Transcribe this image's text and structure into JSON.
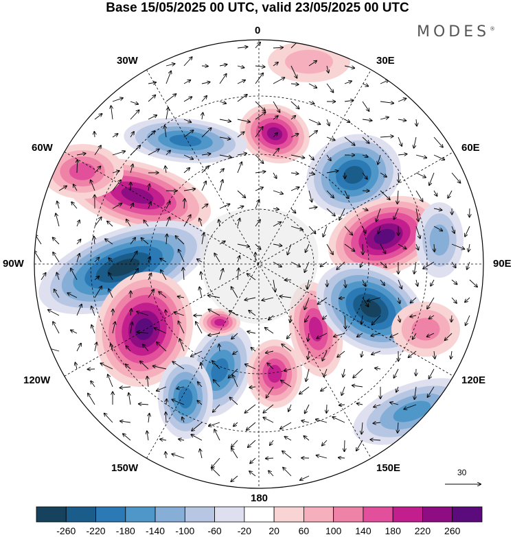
{
  "title": "Base 15/05/2025 00 UTC, valid 23/05/2025 00 UTC",
  "brand": "MODES",
  "brand_mark": "®",
  "longitude_labels": {
    "n": "0",
    "ne30": "30E",
    "ne60": "60E",
    "e": "90E",
    "se120": "120E",
    "se150": "150E",
    "s": "180",
    "sw150": "150W",
    "sw120": "120W",
    "w": "90W",
    "nw60": "60W",
    "nw30": "30W"
  },
  "reference_vector": "30",
  "colors": {
    "negative": [
      "#16425e",
      "#1a5c8a",
      "#2b7ab5",
      "#4f97c8",
      "#86aed6",
      "#b7c6e3",
      "#dfe0ef"
    ],
    "neutral": "#ffffff",
    "positive": [
      "#f9d4d4",
      "#f6b0bd",
      "#ef83a7",
      "#e24f9b",
      "#c21e8e",
      "#8e0d83",
      "#5b0b7c"
    ]
  },
  "colorbar": {
    "ticks": [
      "-260",
      "-220",
      "-180",
      "-140",
      "-100",
      "-60",
      "-20",
      "20",
      "60",
      "100",
      "140",
      "180",
      "220",
      "260"
    ]
  }
}
